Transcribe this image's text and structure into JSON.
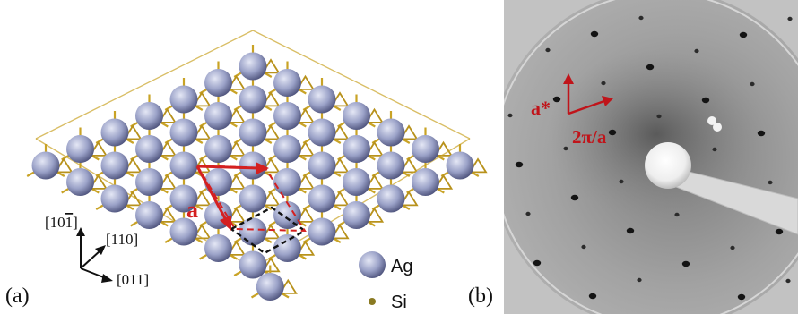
{
  "panel_a": {
    "label": "(a)",
    "lattice_vector_label": "a",
    "axes": {
      "up": "[10",
      "up_overline_digit": "1",
      "up_close": "]",
      "diagonal": "[110]",
      "right": "[011]"
    },
    "legend": [
      {
        "name": "Ag",
        "color": "#9aa0c4"
      },
      {
        "name": "Si",
        "color": "#8a7a22"
      }
    ],
    "colors": {
      "ag_atom": "#9ba2c8",
      "si_bond": "#c9a326",
      "vector": "#d42020",
      "unit_cell_dashed": "#111111"
    }
  },
  "panel_b": {
    "label": "(b)",
    "reciprocal_vector_label": "a*",
    "reciprocal_length_label": "2π/a",
    "colors": {
      "annotation": "#c0141a",
      "diffraction_background": "#a8a8a8"
    }
  }
}
